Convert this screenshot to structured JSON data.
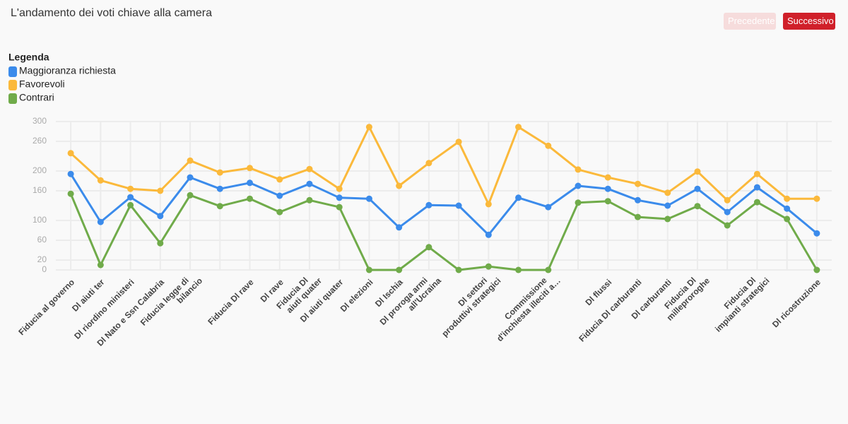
{
  "buttons": {
    "prev": "Precedente",
    "next": "Successivo"
  },
  "chart_data": {
    "type": "line",
    "title": "L'andamento dei voti chiave alla camera",
    "legend_title": "Legenda",
    "categories": [
      "Fiducia al governo",
      "Dl aiuti ter",
      "Dl riordino ministeri",
      "Dl Nato e Ssn Calabria",
      "Fiducia legge di bilancio",
      null,
      "Fiducia Dl rave",
      "Dl rave",
      "Fiducia Dl aiuti quater",
      "Dl aiuti quater",
      "Dl elezioni",
      "Dl Ischia",
      "Dl proroga armi all'Ucraina",
      null,
      "Dl settori produttivi strategici",
      null,
      "Commissione d'inchiesta illeciti a…",
      null,
      "Dl flussi",
      "Fiducia Dl carburanti",
      "Dl carburanti",
      "Fiducia Dl milleproroghe",
      null,
      "Fiducia Dl impianti strategici",
      null,
      "Dl ricostruzione"
    ],
    "series": [
      {
        "name": "Maggioranza richiesta",
        "color": "#3b8beb",
        "values": [
          194,
          97,
          147,
          109,
          187,
          164,
          176,
          150,
          174,
          146,
          144,
          86,
          131,
          130,
          71,
          146,
          127,
          170,
          164,
          141,
          130,
          164,
          117,
          167,
          124,
          74
        ]
      },
      {
        "name": "Favorevoli",
        "color": "#fbb93b",
        "values": [
          236,
          181,
          164,
          160,
          221,
          197,
          206,
          183,
          204,
          164,
          289,
          170,
          216,
          259,
          133,
          289,
          251,
          203,
          187,
          174,
          156,
          199,
          141,
          194,
          144,
          144
        ]
      },
      {
        "name": "Contrari",
        "color": "#70ab4a",
        "values": [
          154,
          10,
          131,
          54,
          151,
          129,
          144,
          117,
          141,
          127,
          0,
          0,
          46,
          0,
          7,
          0,
          0,
          136,
          139,
          107,
          103,
          129,
          90,
          137,
          103,
          0
        ]
      }
    ],
    "ylim": [
      0,
      300
    ],
    "yticks": [
      0,
      20,
      60,
      100,
      160,
      200,
      260,
      300
    ],
    "grid": true
  }
}
